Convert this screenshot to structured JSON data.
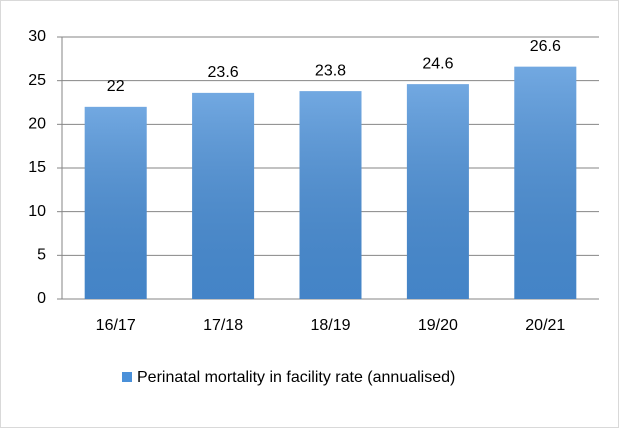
{
  "chart_data": {
    "type": "bar",
    "categories": [
      "16/17",
      "17/18",
      "18/19",
      "19/20",
      "20/21"
    ],
    "series": [
      {
        "name": "Perinatal mortality in facility rate (annualised)",
        "color": "#4a90d9",
        "values": [
          22,
          23.6,
          23.8,
          24.6,
          26.6
        ]
      }
    ],
    "ylim": [
      0,
      30
    ],
    "yticks": [
      0,
      5,
      10,
      15,
      20,
      25,
      30
    ],
    "grid": true,
    "legend": "bottom"
  }
}
